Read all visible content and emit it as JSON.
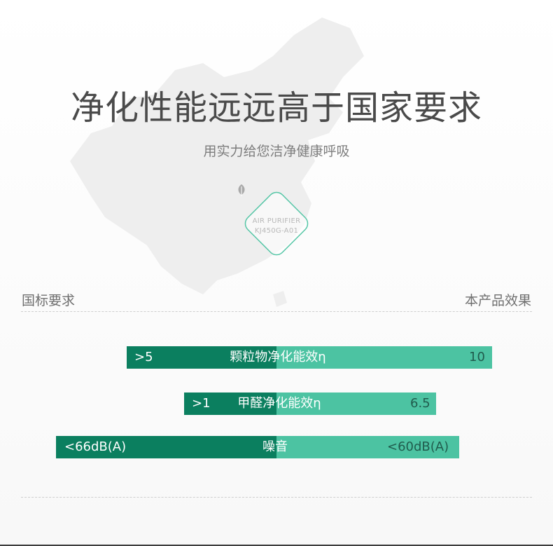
{
  "header": {
    "title": "净化性能远远高于国家要求",
    "subtitle": "用实力给您洁净健康呼吸"
  },
  "badge": {
    "line1": "AIR PURIFIER",
    "line2": "KJ450G-A01",
    "icon": "leaf-icon"
  },
  "compare": {
    "left_label": "国标要求",
    "right_label": "本产品效果",
    "rows": [
      {
        "national": ">5",
        "metric": "颗粒物净化能效η",
        "product": "10"
      },
      {
        "national": ">1",
        "metric": "甲醛净化能效η",
        "product": "6.5"
      },
      {
        "national": "<66dB(A)",
        "metric": "噪音",
        "product": "<60dB(A)"
      }
    ]
  },
  "colors": {
    "national_bar": "#0b7f5f",
    "product_bar": "#4cc3a2"
  }
}
